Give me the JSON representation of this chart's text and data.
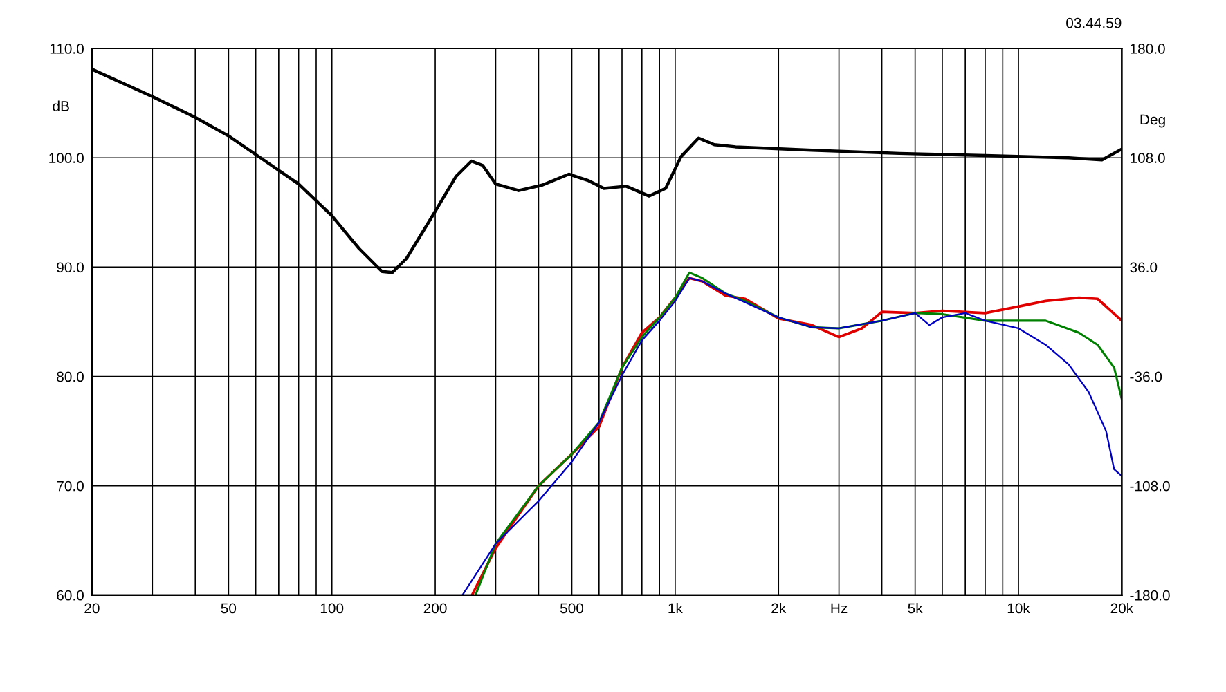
{
  "chart_data": {
    "type": "line",
    "log": "x",
    "grid": true,
    "ylabel": "dB",
    "y2label": "Deg",
    "annotations": [
      "03.44.59"
    ],
    "xlim": [
      20,
      20000
    ],
    "xticks": [
      20,
      {
        "value": 30,
        "label": null
      },
      {
        "value": 40,
        "label": null
      },
      50,
      {
        "value": 60,
        "label": null
      },
      {
        "value": 70,
        "label": null
      },
      {
        "value": 80,
        "label": null
      },
      {
        "value": 90,
        "label": null
      },
      100,
      200,
      {
        "value": 300,
        "label": null
      },
      {
        "value": 400,
        "label": null
      },
      500,
      {
        "value": 600,
        "label": null
      },
      {
        "value": 700,
        "label": null
      },
      {
        "value": 800,
        "label": null
      },
      {
        "value": 900,
        "label": null
      },
      {
        "value": 1000,
        "label": "1k"
      },
      {
        "value": 2000,
        "label": "2k"
      },
      {
        "value": 3000,
        "label": "Hz"
      },
      {
        "value": 4000,
        "label": null
      },
      {
        "value": 5000,
        "label": "5k"
      },
      {
        "value": 6000,
        "label": null
      },
      {
        "value": 7000,
        "label": null
      },
      {
        "value": 8000,
        "label": null
      },
      {
        "value": 9000,
        "label": null
      },
      {
        "value": 10000,
        "label": "10k"
      },
      {
        "value": 20000,
        "label": "20k"
      }
    ],
    "ylim": [
      60,
      110
    ],
    "yticks": [
      {
        "value": 60,
        "label": "60.0"
      },
      {
        "value": 70,
        "label": "70.0"
      },
      {
        "value": 80,
        "label": "80.0"
      },
      {
        "value": 90,
        "label": "90.0"
      },
      {
        "value": 100,
        "label": "100.0"
      },
      {
        "value": 110,
        "label": "110.0"
      }
    ],
    "y2lim": [
      -180,
      180
    ],
    "y2ticks": [
      {
        "value": -180,
        "label": "-180.0"
      },
      {
        "value": -108,
        "label": "-108.0"
      },
      {
        "value": -36,
        "label": "-36.0"
      },
      {
        "value": 36,
        "label": "36.0"
      },
      {
        "value": 108,
        "label": "108.0"
      },
      {
        "value": 180,
        "label": "180.0"
      }
    ],
    "series": [
      {
        "color": "#000000",
        "x": [
          20,
          30,
          40,
          50,
          60,
          80,
          100,
          120,
          140,
          150,
          165,
          200,
          230,
          255,
          275,
          300,
          350,
          410,
          490,
          560,
          620,
          720,
          840,
          938,
          1040,
          1170,
          1300,
          1500,
          2500,
          4500,
          8000,
          14000,
          17500,
          20000
        ],
        "values": [
          108.1,
          105.6,
          103.7,
          102.0,
          100.3,
          97.6,
          94.7,
          91.7,
          89.6,
          89.5,
          90.8,
          95.1,
          98.3,
          99.7,
          99.3,
          97.6,
          97.0,
          97.5,
          98.5,
          97.9,
          97.2,
          97.4,
          96.5,
          97.2,
          100.1,
          101.8,
          101.2,
          101.0,
          100.7,
          100.4,
          100.2,
          100.0,
          99.8,
          100.8
        ]
      },
      {
        "color": "#e00000",
        "x": [
          256,
          300,
          400,
          500,
          600,
          700,
          800,
          900,
          1000,
          1100,
          1200,
          1400,
          1600,
          2000,
          2500,
          3000,
          3500,
          4000,
          5000,
          6000,
          8000,
          10000,
          12000,
          15000,
          17000,
          20000
        ],
        "values": [
          60,
          64.3,
          70.0,
          72.9,
          75.4,
          80.8,
          84.0,
          85.4,
          87.2,
          89.0,
          88.7,
          87.4,
          87.1,
          85.3,
          84.7,
          83.6,
          84.4,
          85.9,
          85.8,
          86.0,
          85.8,
          86.4,
          86.9,
          87.2,
          87.1,
          85.1
        ]
      },
      {
        "color": "#008000",
        "x": [
          262,
          300,
          400,
          500,
          600,
          700,
          800,
          900,
          1000,
          1100,
          1200,
          1400,
          1600,
          2000,
          2500,
          3000,
          4000,
          5000,
          6000,
          8000,
          10000,
          12000,
          15000,
          17000,
          19000,
          20000
        ],
        "values": [
          60,
          64.7,
          70.0,
          72.9,
          75.8,
          80.8,
          83.6,
          85.4,
          87.2,
          89.5,
          89.0,
          87.6,
          86.9,
          85.4,
          84.5,
          84.4,
          85.1,
          85.8,
          85.7,
          85.1,
          85.1,
          85.1,
          84.0,
          82.9,
          80.8,
          77.9
        ]
      },
      {
        "color": "#0000c0",
        "x": [
          240,
          300,
          400,
          500,
          600,
          700,
          800,
          900,
          1000,
          1100,
          1200,
          1400,
          2000,
          2500,
          3000,
          4000,
          5000,
          5500,
          6000,
          7000,
          8000,
          10000,
          12000,
          14000,
          16000,
          18000,
          19000,
          20000
        ],
        "values": [
          60,
          64.7,
          68.6,
          72.2,
          75.8,
          80.1,
          83.3,
          85.1,
          86.9,
          89.0,
          88.7,
          87.6,
          85.4,
          84.5,
          84.4,
          85.1,
          85.8,
          84.7,
          85.4,
          85.8,
          85.1,
          84.4,
          82.9,
          81.1,
          78.6,
          75.0,
          71.5,
          70.9
        ]
      }
    ]
  }
}
